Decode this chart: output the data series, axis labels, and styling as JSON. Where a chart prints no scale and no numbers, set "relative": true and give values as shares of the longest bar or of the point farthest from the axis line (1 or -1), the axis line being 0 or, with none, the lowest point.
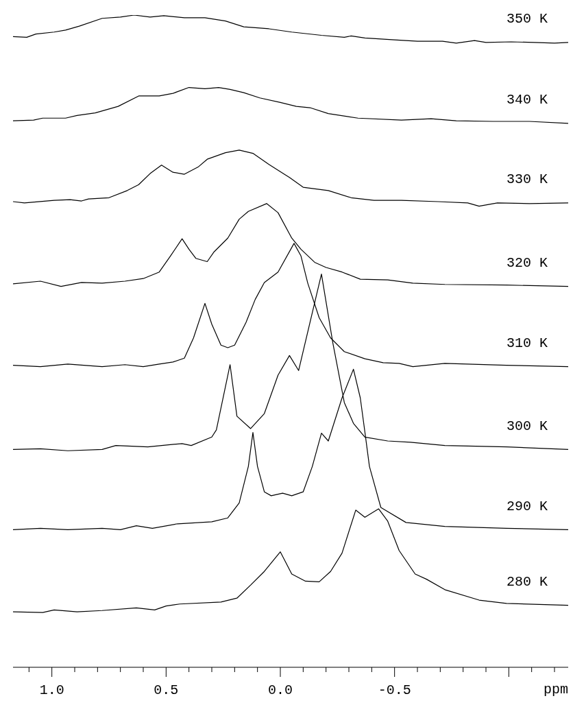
{
  "chart_data": {
    "type": "line",
    "relative": true,
    "xlabel": "ppm",
    "xlim": [
      1.17,
      -1.26
    ],
    "xticks": [
      {
        "value": 1.1,
        "label": null
      },
      {
        "value": 1.0,
        "label": "1.0"
      },
      {
        "value": 0.9,
        "label": null
      },
      {
        "value": 0.8,
        "label": null
      },
      {
        "value": 0.7,
        "label": null
      },
      {
        "value": 0.6,
        "label": null
      },
      {
        "value": 0.5,
        "label": "0.5"
      },
      {
        "value": 0.4,
        "label": null
      },
      {
        "value": 0.3,
        "label": null
      },
      {
        "value": 0.2,
        "label": null
      },
      {
        "value": 0.1,
        "label": null
      },
      {
        "value": 0.0,
        "label": "0.0"
      },
      {
        "value": -0.1,
        "label": null
      },
      {
        "value": -0.2,
        "label": null
      },
      {
        "value": -0.3,
        "label": null
      },
      {
        "value": -0.4,
        "label": null
      },
      {
        "value": -0.5,
        "label": "-0.5"
      },
      {
        "value": -0.6,
        "label": null
      },
      {
        "value": -0.7,
        "label": null
      },
      {
        "value": -0.8,
        "label": null
      },
      {
        "value": -0.9,
        "label": null
      },
      {
        "value": -1.0,
        "label": null
      },
      {
        "value": -1.1,
        "label": null
      },
      {
        "value": -1.2,
        "label": null
      }
    ],
    "tick_labels": "x",
    "grid": false,
    "legend": false,
    "marker": "none",
    "line_style": "solid",
    "series": [
      {
        "name": "350 K",
        "color": "#000000",
        "x": [
          1.17,
          1.11,
          1.07,
          0.99,
          0.94,
          0.88,
          0.78,
          0.7,
          0.64,
          0.57,
          0.51,
          0.42,
          0.33,
          0.24,
          0.16,
          0.05,
          -0.05,
          -0.18,
          -0.28,
          -0.31,
          -0.37,
          -0.5,
          -0.6,
          -0.71,
          -0.77,
          -0.85,
          -0.9,
          -1.01,
          -1.11,
          -1.2,
          -1.26
        ],
        "values": [
          0.967,
          0.966,
          0.971,
          0.974,
          0.977,
          0.983,
          0.995,
          0.997,
          1.0,
          0.997,
          0.999,
          0.996,
          0.996,
          0.991,
          0.982,
          0.979,
          0.974,
          0.969,
          0.966,
          0.968,
          0.965,
          0.962,
          0.96,
          0.96,
          0.957,
          0.961,
          0.958,
          0.959,
          0.958,
          0.957,
          0.958
        ]
      },
      {
        "name": "340 K",
        "color": "#000000",
        "x": [
          1.17,
          1.08,
          1.04,
          0.94,
          0.89,
          0.81,
          0.71,
          0.62,
          0.53,
          0.47,
          0.4,
          0.33,
          0.27,
          0.22,
          0.16,
          0.09,
          0.0,
          -0.07,
          -0.13,
          -0.21,
          -0.34,
          -0.53,
          -0.66,
          -0.77,
          -0.93,
          -1.09,
          -1.26
        ],
        "values": [
          0.838,
          0.839,
          0.842,
          0.842,
          0.846,
          0.85,
          0.86,
          0.876,
          0.876,
          0.88,
          0.889,
          0.887,
          0.889,
          0.886,
          0.881,
          0.873,
          0.866,
          0.86,
          0.858,
          0.849,
          0.842,
          0.839,
          0.841,
          0.838,
          0.837,
          0.837,
          0.834
        ]
      },
      {
        "name": "330 K",
        "color": "#000000",
        "x": [
          1.17,
          1.12,
          0.99,
          0.92,
          0.87,
          0.84,
          0.75,
          0.67,
          0.62,
          0.57,
          0.52,
          0.47,
          0.42,
          0.36,
          0.32,
          0.24,
          0.18,
          0.12,
          0.05,
          -0.04,
          -0.1,
          -0.21,
          -0.31,
          -0.41,
          -0.53,
          -0.69,
          -0.82,
          -0.87,
          -0.95,
          -1.09,
          -1.26
        ],
        "values": [
          0.714,
          0.712,
          0.716,
          0.717,
          0.715,
          0.718,
          0.72,
          0.731,
          0.74,
          0.757,
          0.77,
          0.759,
          0.756,
          0.767,
          0.779,
          0.789,
          0.793,
          0.788,
          0.771,
          0.751,
          0.736,
          0.731,
          0.72,
          0.716,
          0.716,
          0.714,
          0.712,
          0.707,
          0.712,
          0.711,
          0.712
        ]
      },
      {
        "name": "320 K",
        "color": "#000000",
        "x": [
          1.17,
          1.05,
          0.96,
          0.87,
          0.78,
          0.68,
          0.6,
          0.53,
          0.48,
          0.43,
          0.4,
          0.37,
          0.32,
          0.29,
          0.23,
          0.18,
          0.14,
          0.06,
          0.01,
          -0.05,
          -0.09,
          -0.15,
          -0.2,
          -0.27,
          -0.35,
          -0.47,
          -0.58,
          -0.72,
          -0.99,
          -1.26
        ],
        "values": [
          0.588,
          0.592,
          0.584,
          0.59,
          0.589,
          0.592,
          0.596,
          0.606,
          0.631,
          0.657,
          0.641,
          0.627,
          0.622,
          0.637,
          0.658,
          0.687,
          0.699,
          0.711,
          0.697,
          0.658,
          0.641,
          0.621,
          0.613,
          0.606,
          0.595,
          0.594,
          0.589,
          0.587,
          0.586,
          0.584
        ]
      },
      {
        "name": "310 K",
        "color": "#000000",
        "x": [
          1.17,
          1.05,
          0.93,
          0.78,
          0.68,
          0.6,
          0.53,
          0.47,
          0.42,
          0.38,
          0.33,
          0.3,
          0.26,
          0.23,
          0.2,
          0.15,
          0.11,
          0.07,
          0.01,
          -0.06,
          -0.09,
          -0.12,
          -0.17,
          -0.22,
          -0.28,
          -0.37,
          -0.45,
          -0.52,
          -0.58,
          -0.72,
          -0.99,
          -1.26
        ],
        "values": [
          0.463,
          0.461,
          0.465,
          0.461,
          0.464,
          0.461,
          0.465,
          0.468,
          0.474,
          0.505,
          0.558,
          0.526,
          0.494,
          0.49,
          0.494,
          0.529,
          0.564,
          0.59,
          0.606,
          0.65,
          0.631,
          0.589,
          0.536,
          0.505,
          0.484,
          0.473,
          0.467,
          0.466,
          0.461,
          0.466,
          0.463,
          0.461
        ]
      },
      {
        "name": "300 K",
        "color": "#000000",
        "x": [
          1.17,
          1.05,
          0.93,
          0.78,
          0.72,
          0.58,
          0.43,
          0.39,
          0.3,
          0.28,
          0.22,
          0.19,
          0.13,
          0.07,
          0.01,
          -0.04,
          -0.08,
          -0.18,
          -0.23,
          -0.28,
          -0.32,
          -0.37,
          -0.47,
          -0.57,
          -0.72,
          -0.99,
          -1.26
        ],
        "values": [
          0.334,
          0.335,
          0.332,
          0.334,
          0.34,
          0.338,
          0.343,
          0.34,
          0.353,
          0.364,
          0.464,
          0.385,
          0.366,
          0.389,
          0.448,
          0.478,
          0.455,
          0.603,
          0.497,
          0.406,
          0.374,
          0.353,
          0.347,
          0.345,
          0.34,
          0.338,
          0.334
        ]
      },
      {
        "name": "290 K",
        "color": "#000000",
        "x": [
          1.17,
          1.05,
          0.93,
          0.78,
          0.7,
          0.63,
          0.56,
          0.45,
          0.3,
          0.23,
          0.18,
          0.14,
          0.12,
          0.1,
          0.07,
          0.04,
          -0.01,
          -0.05,
          -0.1,
          -0.14,
          -0.18,
          -0.21,
          -0.27,
          -0.32,
          -0.35,
          -0.37,
          -0.39,
          -0.44,
          -0.55,
          -0.72,
          -0.99,
          -1.26
        ],
        "values": [
          0.211,
          0.213,
          0.211,
          0.213,
          0.211,
          0.217,
          0.213,
          0.22,
          0.223,
          0.229,
          0.252,
          0.308,
          0.36,
          0.308,
          0.269,
          0.263,
          0.267,
          0.263,
          0.269,
          0.308,
          0.359,
          0.347,
          0.413,
          0.457,
          0.413,
          0.361,
          0.308,
          0.245,
          0.222,
          0.216,
          0.213,
          0.211
        ]
      },
      {
        "name": "280 K",
        "color": "#000000",
        "x": [
          1.17,
          1.04,
          0.99,
          0.89,
          0.78,
          0.63,
          0.55,
          0.5,
          0.44,
          0.26,
          0.19,
          0.13,
          0.07,
          0.0,
          -0.05,
          -0.11,
          -0.17,
          -0.22,
          -0.27,
          -0.33,
          -0.37,
          -0.43,
          -0.47,
          -0.52,
          -0.59,
          -0.64,
          -0.72,
          -0.87,
          -0.99,
          -1.26
        ],
        "values": [
          0.085,
          0.084,
          0.088,
          0.085,
          0.087,
          0.091,
          0.088,
          0.094,
          0.097,
          0.1,
          0.106,
          0.126,
          0.147,
          0.177,
          0.143,
          0.132,
          0.131,
          0.147,
          0.175,
          0.241,
          0.23,
          0.243,
          0.224,
          0.179,
          0.143,
          0.135,
          0.119,
          0.103,
          0.098,
          0.095
        ]
      }
    ]
  }
}
